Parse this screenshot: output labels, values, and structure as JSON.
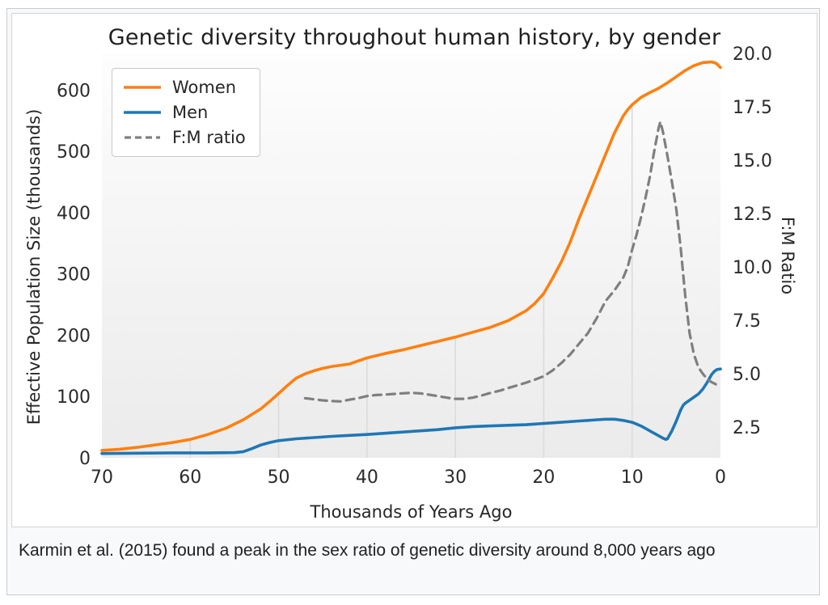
{
  "figure": {
    "title": "Genetic diversity throughout human history, by gender",
    "x_label": "Thousands of Years Ago",
    "y_left_label": "Effective Population Size (thousands)",
    "y_right_label": "F:M Ratio"
  },
  "legend": [
    {
      "label": "Women",
      "color": "#ff7f0e",
      "dash": false
    },
    {
      "label": "Men",
      "color": "#1f77b4",
      "dash": false
    },
    {
      "label": "F:M ratio",
      "color": "#7f7f7f",
      "dash": true
    }
  ],
  "caption": "Karmin et al. (2015) found a peak in the sex ratio of genetic diversity around 8,000 years ago",
  "chart_data": {
    "type": "line",
    "title": "Genetic diversity throughout human history, by gender",
    "xlabel": "Thousands of Years Ago",
    "ylabel_left": "Effective Population Size (thousands)",
    "ylabel_right": "F:M Ratio",
    "x_axis": {
      "direction": "reversed",
      "min": 0,
      "max": 70,
      "ticks": [
        70,
        60,
        50,
        40,
        30,
        20,
        10,
        0
      ]
    },
    "y_left_axis": {
      "min": 0,
      "max": 660,
      "ticks": [
        0,
        100,
        200,
        300,
        400,
        500,
        600
      ]
    },
    "y_right_axis": {
      "min": 1.06,
      "max": 20.0,
      "ticks": [
        "2.5",
        "5.0",
        "7.5",
        "10.0",
        "12.5",
        "15.0",
        "17.5",
        "20.0"
      ]
    },
    "gridlines_x": [
      60,
      50,
      40,
      30,
      20,
      10
    ],
    "grid_color": "#dbdbdb",
    "plot_bg_top": "#fdfdfd",
    "plot_bg_bottom": "#ebebeb",
    "series": [
      {
        "name": "Women",
        "axis": "left",
        "color": "#ff7f0e",
        "width": 3.6,
        "dash": null,
        "points": [
          [
            70,
            12
          ],
          [
            68,
            14
          ],
          [
            66,
            17
          ],
          [
            64,
            21
          ],
          [
            62,
            25
          ],
          [
            60,
            30
          ],
          [
            58,
            38
          ],
          [
            56,
            48
          ],
          [
            54,
            62
          ],
          [
            52,
            80
          ],
          [
            51,
            92
          ],
          [
            50,
            105
          ],
          [
            49,
            118
          ],
          [
            48,
            130
          ],
          [
            47,
            137
          ],
          [
            46,
            142
          ],
          [
            45,
            146
          ],
          [
            44,
            149
          ],
          [
            42,
            153
          ],
          [
            40,
            163
          ],
          [
            38,
            170
          ],
          [
            36,
            176
          ],
          [
            34,
            183
          ],
          [
            32,
            190
          ],
          [
            30,
            197
          ],
          [
            28,
            205
          ],
          [
            26,
            213
          ],
          [
            24,
            224
          ],
          [
            22,
            240
          ],
          [
            21,
            252
          ],
          [
            20,
            268
          ],
          [
            19,
            293
          ],
          [
            18,
            320
          ],
          [
            17,
            352
          ],
          [
            16,
            390
          ],
          [
            15,
            425
          ],
          [
            14,
            460
          ],
          [
            13,
            495
          ],
          [
            12,
            530
          ],
          [
            11,
            558
          ],
          [
            10.5,
            568
          ],
          [
            10,
            576
          ],
          [
            9,
            588
          ],
          [
            8,
            596
          ],
          [
            7,
            603
          ],
          [
            6,
            612
          ],
          [
            5,
            622
          ],
          [
            4,
            632
          ],
          [
            3,
            640
          ],
          [
            2,
            645
          ],
          [
            1,
            646
          ],
          [
            0.5,
            644
          ],
          [
            0,
            637
          ]
        ]
      },
      {
        "name": "Men",
        "axis": "left",
        "color": "#1f77b4",
        "width": 3.6,
        "dash": null,
        "points": [
          [
            70,
            7
          ],
          [
            66,
            7.5
          ],
          [
            62,
            8
          ],
          [
            58,
            8
          ],
          [
            55,
            8.5
          ],
          [
            54,
            10
          ],
          [
            53,
            15
          ],
          [
            52,
            21
          ],
          [
            51,
            25
          ],
          [
            50,
            28
          ],
          [
            48,
            31
          ],
          [
            46,
            33
          ],
          [
            44,
            35
          ],
          [
            42,
            36.5
          ],
          [
            40,
            38
          ],
          [
            38,
            40
          ],
          [
            36,
            42
          ],
          [
            34,
            44
          ],
          [
            32,
            46
          ],
          [
            30,
            49
          ],
          [
            28,
            51
          ],
          [
            26,
            52
          ],
          [
            24,
            53
          ],
          [
            22,
            54
          ],
          [
            20,
            56
          ],
          [
            18,
            58
          ],
          [
            16,
            60
          ],
          [
            15,
            61
          ],
          [
            14,
            62
          ],
          [
            13,
            63
          ],
          [
            12,
            63
          ],
          [
            11,
            61
          ],
          [
            10,
            58
          ],
          [
            9.5,
            55
          ],
          [
            9,
            52
          ],
          [
            8.5,
            48
          ],
          [
            8,
            44
          ],
          [
            7.5,
            40
          ],
          [
            7,
            36
          ],
          [
            6.5,
            32
          ],
          [
            6.2,
            30
          ],
          [
            6,
            31
          ],
          [
            5.5,
            44
          ],
          [
            5,
            60
          ],
          [
            4.5,
            78
          ],
          [
            4.2,
            86
          ],
          [
            4,
            89
          ],
          [
            3.5,
            94
          ],
          [
            3,
            99
          ],
          [
            2.5,
            104
          ],
          [
            2,
            112
          ],
          [
            1.5,
            123
          ],
          [
            1,
            136
          ],
          [
            0.7,
            141
          ],
          [
            0.4,
            144
          ],
          [
            0,
            145
          ]
        ]
      },
      {
        "name": "F:M ratio",
        "axis": "right",
        "color": "#7f7f7f",
        "width": 3.2,
        "dash": [
          10,
          7
        ],
        "points": [
          [
            47,
            3.85
          ],
          [
            46,
            3.8
          ],
          [
            45,
            3.75
          ],
          [
            44,
            3.72
          ],
          [
            43,
            3.7
          ],
          [
            42,
            3.78
          ],
          [
            41,
            3.85
          ],
          [
            40,
            3.95
          ],
          [
            39,
            4.0
          ],
          [
            38,
            4.02
          ],
          [
            37,
            4.05
          ],
          [
            36,
            4.08
          ],
          [
            35,
            4.1
          ],
          [
            34,
            4.08
          ],
          [
            33,
            4.02
          ],
          [
            32,
            3.95
          ],
          [
            31,
            3.88
          ],
          [
            30,
            3.82
          ],
          [
            29,
            3.82
          ],
          [
            28,
            3.88
          ],
          [
            27,
            3.98
          ],
          [
            26,
            4.1
          ],
          [
            25,
            4.2
          ],
          [
            24,
            4.33
          ],
          [
            23,
            4.45
          ],
          [
            22,
            4.58
          ],
          [
            21,
            4.72
          ],
          [
            20,
            4.88
          ],
          [
            19,
            5.15
          ],
          [
            18,
            5.5
          ],
          [
            17,
            5.9
          ],
          [
            16,
            6.4
          ],
          [
            15,
            6.9
          ],
          [
            14,
            7.6
          ],
          [
            13,
            8.4
          ],
          [
            12,
            8.9
          ],
          [
            11,
            9.5
          ],
          [
            10.5,
            10.0
          ],
          [
            10,
            10.8
          ],
          [
            9.5,
            11.5
          ],
          [
            9,
            12.3
          ],
          [
            8.5,
            13.2
          ],
          [
            8,
            14.2
          ],
          [
            7.5,
            15.4
          ],
          [
            7,
            16.5
          ],
          [
            6.8,
            16.8
          ],
          [
            6.5,
            16.3
          ],
          [
            6,
            15.2
          ],
          [
            5.5,
            14.0
          ],
          [
            5,
            12.7
          ],
          [
            4.5,
            10.9
          ],
          [
            4,
            8.7
          ],
          [
            3.5,
            6.9
          ],
          [
            3,
            5.9
          ],
          [
            2.5,
            5.3
          ],
          [
            2,
            5.0
          ],
          [
            1.5,
            4.75
          ],
          [
            1,
            4.6
          ],
          [
            0.5,
            4.5
          ],
          [
            0,
            4.42
          ]
        ]
      }
    ]
  }
}
